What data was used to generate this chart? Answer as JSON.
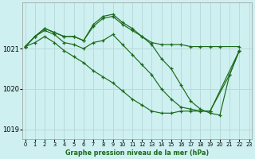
{
  "title": "Graphe pression niveau de la mer (hPa)",
  "bg_color": "#cef0f0",
  "grid_color": "#b8dada",
  "line_color": "#1a6b1a",
  "ylim": [
    1018.75,
    1022.15
  ],
  "yticks": [
    1019,
    1020,
    1021
  ],
  "xlim": [
    -0.3,
    23.3
  ],
  "xticks": [
    0,
    1,
    2,
    3,
    4,
    5,
    6,
    7,
    8,
    9,
    10,
    11,
    12,
    13,
    14,
    15,
    16,
    17,
    18,
    19,
    20,
    21,
    22,
    23
  ],
  "series": [
    {
      "x": [
        0,
        1,
        2,
        3,
        4,
        5,
        6,
        7,
        8,
        9,
        10,
        11,
        12,
        13,
        14,
        15,
        16,
        17,
        18,
        19,
        20,
        22
      ],
      "y": [
        1021.05,
        1021.3,
        1021.5,
        1021.4,
        1021.3,
        1021.3,
        1021.2,
        1021.6,
        1021.8,
        1021.85,
        1021.65,
        1021.5,
        1021.3,
        1021.15,
        1021.1,
        1021.1,
        1021.1,
        1021.05,
        1021.05,
        1021.05,
        1021.05,
        1021.05
      ]
    },
    {
      "x": [
        0,
        1,
        2,
        3,
        4,
        5,
        6,
        7,
        8,
        9,
        10,
        11,
        12,
        13,
        14,
        15,
        16,
        17,
        18,
        19,
        20,
        21,
        22
      ],
      "y": [
        1021.05,
        1021.3,
        1021.5,
        1021.4,
        1021.3,
        1021.3,
        1021.2,
        1021.55,
        1021.75,
        1021.8,
        1021.6,
        1021.45,
        1021.3,
        1021.1,
        1020.75,
        1020.5,
        1020.1,
        1019.7,
        1019.5,
        1019.4,
        1019.35,
        1020.35,
        1020.95
      ]
    },
    {
      "x": [
        0,
        1,
        2,
        3,
        4,
        5,
        6,
        7,
        8,
        9,
        10,
        11,
        12,
        13,
        14,
        15,
        16,
        17,
        18,
        19,
        21,
        22
      ],
      "y": [
        1021.05,
        1021.3,
        1021.45,
        1021.35,
        1021.15,
        1021.1,
        1021.0,
        1021.15,
        1021.2,
        1021.35,
        1021.1,
        1020.85,
        1020.6,
        1020.35,
        1020.0,
        1019.75,
        1019.55,
        1019.5,
        1019.45,
        1019.45,
        1020.35,
        1020.95
      ]
    },
    {
      "x": [
        0,
        1,
        2,
        3,
        4,
        5,
        6,
        7,
        8,
        9,
        10,
        11,
        12,
        13,
        14,
        15,
        16,
        17,
        18,
        19,
        22
      ],
      "y": [
        1021.05,
        1021.15,
        1021.3,
        1021.15,
        1020.95,
        1020.8,
        1020.65,
        1020.45,
        1020.3,
        1020.15,
        1019.95,
        1019.75,
        1019.6,
        1019.45,
        1019.4,
        1019.4,
        1019.45,
        1019.45,
        1019.45,
        1019.45,
        1020.95
      ]
    }
  ]
}
